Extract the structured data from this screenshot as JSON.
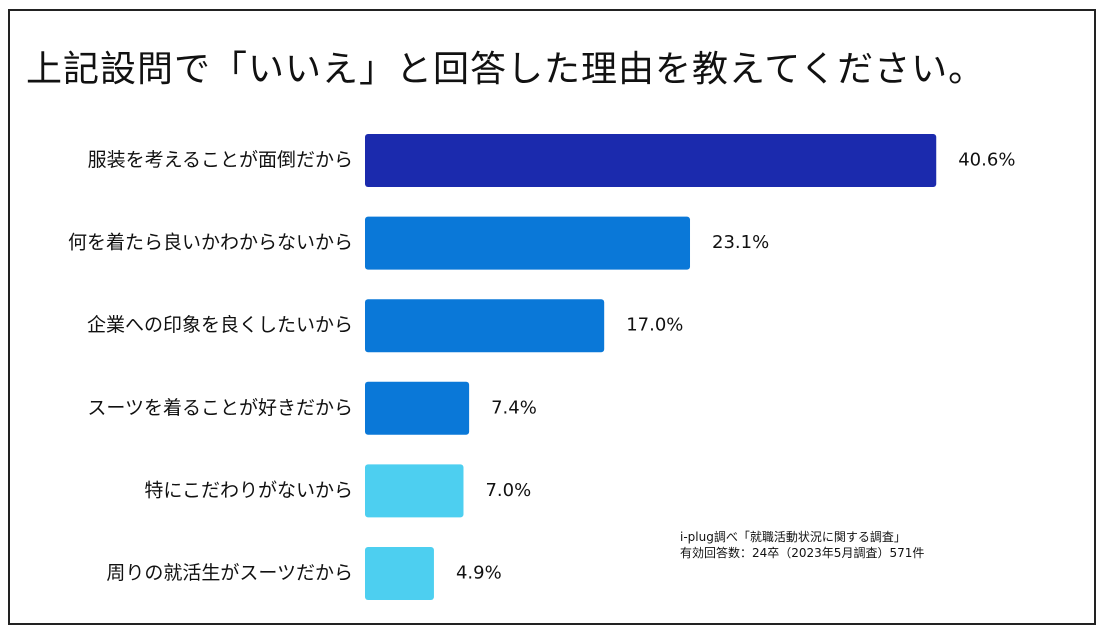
{
  "title": "上記設問で「いいえ」と回答した理由を教えてください。",
  "source": {
    "line1": "i-plug調べ「就職活動状況に関する調査」",
    "line2": "有効回答数：24卒（2023年5月調査）571件"
  },
  "colors": {
    "dark": "#1b2aad",
    "mid": "#0a78d8",
    "light": "#4dcff0"
  },
  "chart_data": {
    "type": "bar",
    "orientation": "horizontal",
    "title": "上記設問で「いいえ」と回答した理由を教えてください。",
    "categories": [
      "服装を考えることが面倒だから",
      "何を着たら良いかわからないから",
      "企業への印象を良くしたいから",
      "スーツを着ることが好きだから",
      "特にこだわりがないから",
      "周りの就活生がスーツだから"
    ],
    "values": [
      40.6,
      23.1,
      17.0,
      7.4,
      7.0,
      4.9
    ],
    "value_labels": [
      "40.6%",
      "23.1%",
      "17.0%",
      "7.4%",
      "7.0%",
      "4.9%"
    ],
    "bar_colors": [
      "#1b2aad",
      "#0a78d8",
      "#0a78d8",
      "#0a78d8",
      "#4dcff0",
      "#4dcff0"
    ],
    "unit": "%",
    "grid": false,
    "legend": "none"
  }
}
